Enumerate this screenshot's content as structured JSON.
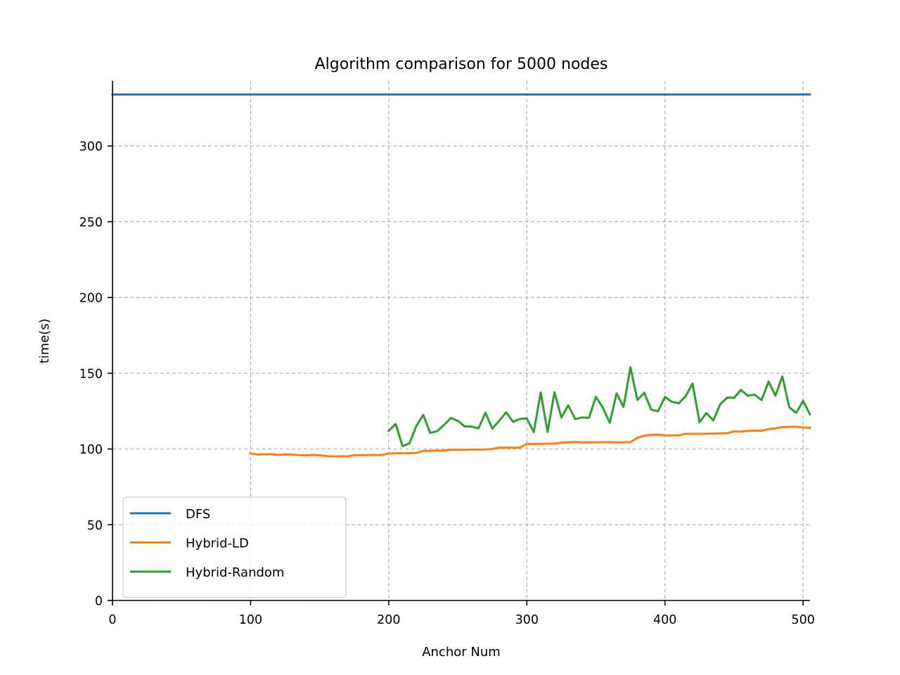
{
  "chart_data": {
    "type": "line",
    "title": "Algorithm comparison for 5000 nodes",
    "xlabel": "Anchor Num",
    "ylabel": "time(s)",
    "xlim": [
      0,
      505
    ],
    "ylim": [
      0,
      343
    ],
    "xticks": [
      0,
      100,
      200,
      300,
      400,
      500
    ],
    "yticks": [
      0,
      50,
      100,
      150,
      200,
      250,
      300
    ],
    "grid": true,
    "grid_style": "dashed",
    "legend_position": "lower-left",
    "series": [
      {
        "name": "DFS",
        "color": "#1f77b4",
        "x": [
          0,
          505
        ],
        "y": [
          334,
          334
        ]
      },
      {
        "name": "Hybrid-LD",
        "color": "#ff7f0e",
        "x": [
          100,
          105,
          110,
          115,
          120,
          125,
          130,
          135,
          140,
          145,
          150,
          155,
          160,
          165,
          170,
          175,
          180,
          185,
          190,
          195,
          200,
          205,
          210,
          215,
          220,
          225,
          230,
          235,
          240,
          245,
          250,
          255,
          260,
          265,
          270,
          275,
          280,
          285,
          290,
          295,
          300,
          305,
          310,
          315,
          320,
          325,
          330,
          335,
          340,
          345,
          350,
          355,
          360,
          365,
          370,
          375,
          380,
          385,
          390,
          395,
          400,
          405,
          410,
          415,
          420,
          425,
          430,
          435,
          440,
          445,
          450,
          455,
          460,
          465,
          470,
          475,
          480,
          485,
          490,
          495,
          500,
          505
        ],
        "y": [
          97,
          96.3,
          96.5,
          96.6,
          96.1,
          96.4,
          96.3,
          95.9,
          95.8,
          96.1,
          95.9,
          95.3,
          95.1,
          95.2,
          95.1,
          95.9,
          96.0,
          96.0,
          96.1,
          96.0,
          97.0,
          97.1,
          97.2,
          97.2,
          97.4,
          98.7,
          98.8,
          98.9,
          99.0,
          99.4,
          99.5,
          99.5,
          99.6,
          99.6,
          99.7,
          100.0,
          100.8,
          100.9,
          100.8,
          100.9,
          103.4,
          103.3,
          103.4,
          103.5,
          103.5,
          104.2,
          104.4,
          104.6,
          104.3,
          104.4,
          104.4,
          104.5,
          104.5,
          104.4,
          104.4,
          104.5,
          107.3,
          108.8,
          109.3,
          109.4,
          108.9,
          109.0,
          109.0,
          110.0,
          110.0,
          110.0,
          110.1,
          110.2,
          110.3,
          110.4,
          111.6,
          111.5,
          111.9,
          112.1,
          112.0,
          113.1,
          113.6,
          114.4,
          114.6,
          114.7,
          114.2,
          114.0
        ]
      },
      {
        "name": "Hybrid-Random",
        "color": "#2ca02c",
        "x": [
          200,
          205,
          210,
          215,
          220,
          225,
          230,
          235,
          240,
          245,
          250,
          255,
          260,
          265,
          270,
          275,
          280,
          285,
          290,
          295,
          300,
          305,
          310,
          315,
          320,
          325,
          330,
          335,
          340,
          345,
          350,
          355,
          360,
          365,
          370,
          375,
          380,
          385,
          390,
          395,
          400,
          405,
          410,
          415,
          420,
          425,
          430,
          435,
          440,
          445,
          450,
          455,
          460,
          465,
          470,
          475,
          480,
          485,
          490,
          495,
          500,
          505
        ],
        "y": [
          112,
          116.5,
          101.9,
          103.7,
          115.2,
          122.5,
          110.6,
          111.7,
          115.8,
          120.5,
          118.6,
          114.9,
          114.8,
          113.6,
          123.9,
          113.5,
          118.6,
          124.2,
          117.9,
          119.9,
          120.1,
          111.1,
          137.3,
          111.3,
          137.5,
          120.7,
          128.8,
          119.7,
          120.8,
          120.6,
          134.4,
          127.4,
          117.3,
          136.7,
          127.7,
          153.9,
          132.3,
          137.1,
          126.0,
          124.9,
          134.3,
          131.1,
          130.2,
          134.9,
          143.2,
          117.6,
          123.8,
          118.8,
          129.5,
          133.9,
          133.7,
          139.0,
          135.1,
          135.9,
          132.3,
          144.5,
          135.2,
          147.9,
          127.5,
          123.9,
          131.8,
          122.8
        ]
      }
    ]
  }
}
